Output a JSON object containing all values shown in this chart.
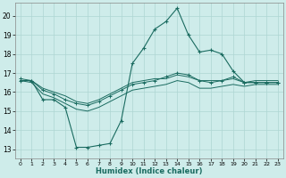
{
  "xlabel": "Humidex (Indice chaleur)",
  "x_ticks": [
    0,
    1,
    2,
    3,
    4,
    5,
    6,
    7,
    8,
    9,
    10,
    11,
    12,
    13,
    14,
    15,
    16,
    17,
    18,
    19,
    20,
    21,
    22,
    23
  ],
  "ylim": [
    12.5,
    20.7
  ],
  "yticks": [
    13,
    14,
    15,
    16,
    17,
    18,
    19,
    20
  ],
  "xlim": [
    -0.5,
    23.5
  ],
  "background_color": "#ceecea",
  "grid_color": "#aed6d2",
  "line_color": "#1a6b60",
  "series": {
    "line1_x": [
      0,
      1,
      2,
      3,
      4,
      5,
      6,
      7,
      8,
      9,
      10,
      11,
      12,
      13,
      14,
      15,
      16,
      17,
      18,
      19,
      20,
      21,
      22,
      23
    ],
    "line1_y": [
      16.6,
      16.6,
      15.6,
      15.6,
      15.2,
      13.1,
      13.1,
      13.2,
      13.3,
      14.5,
      17.5,
      18.3,
      19.3,
      19.7,
      20.4,
      19.0,
      18.1,
      18.2,
      18.0,
      17.1,
      16.5,
      16.5,
      16.5,
      16.5
    ],
    "line2_x": [
      0,
      1,
      2,
      3,
      4,
      5,
      6,
      7,
      8,
      9,
      10,
      11,
      12,
      13,
      14,
      15,
      16,
      17,
      18,
      19,
      20,
      21,
      22,
      23
    ],
    "line2_y": [
      16.7,
      16.6,
      16.1,
      15.9,
      15.6,
      15.4,
      15.3,
      15.5,
      15.8,
      16.1,
      16.4,
      16.5,
      16.6,
      16.8,
      17.0,
      16.9,
      16.6,
      16.5,
      16.6,
      16.8,
      16.5,
      16.5,
      16.5,
      16.5
    ],
    "line3_x": [
      0,
      1,
      2,
      3,
      4,
      5,
      6,
      7,
      8,
      9,
      10,
      11,
      12,
      13,
      14,
      15,
      16,
      17,
      18,
      19,
      20,
      21,
      22,
      23
    ],
    "line3_y": [
      16.6,
      16.5,
      15.9,
      15.7,
      15.4,
      15.1,
      15.0,
      15.2,
      15.5,
      15.8,
      16.1,
      16.2,
      16.3,
      16.4,
      16.6,
      16.5,
      16.2,
      16.2,
      16.3,
      16.4,
      16.3,
      16.4,
      16.4,
      16.4
    ],
    "line4_x": [
      0,
      1,
      2,
      3,
      4,
      5,
      6,
      7,
      8,
      9,
      10,
      11,
      12,
      13,
      14,
      15,
      16,
      17,
      18,
      19,
      20,
      21,
      22,
      23
    ],
    "line4_y": [
      16.6,
      16.6,
      16.2,
      16.0,
      15.8,
      15.5,
      15.4,
      15.6,
      15.9,
      16.2,
      16.5,
      16.6,
      16.7,
      16.7,
      16.9,
      16.8,
      16.6,
      16.6,
      16.6,
      16.7,
      16.5,
      16.6,
      16.6,
      16.6
    ]
  }
}
